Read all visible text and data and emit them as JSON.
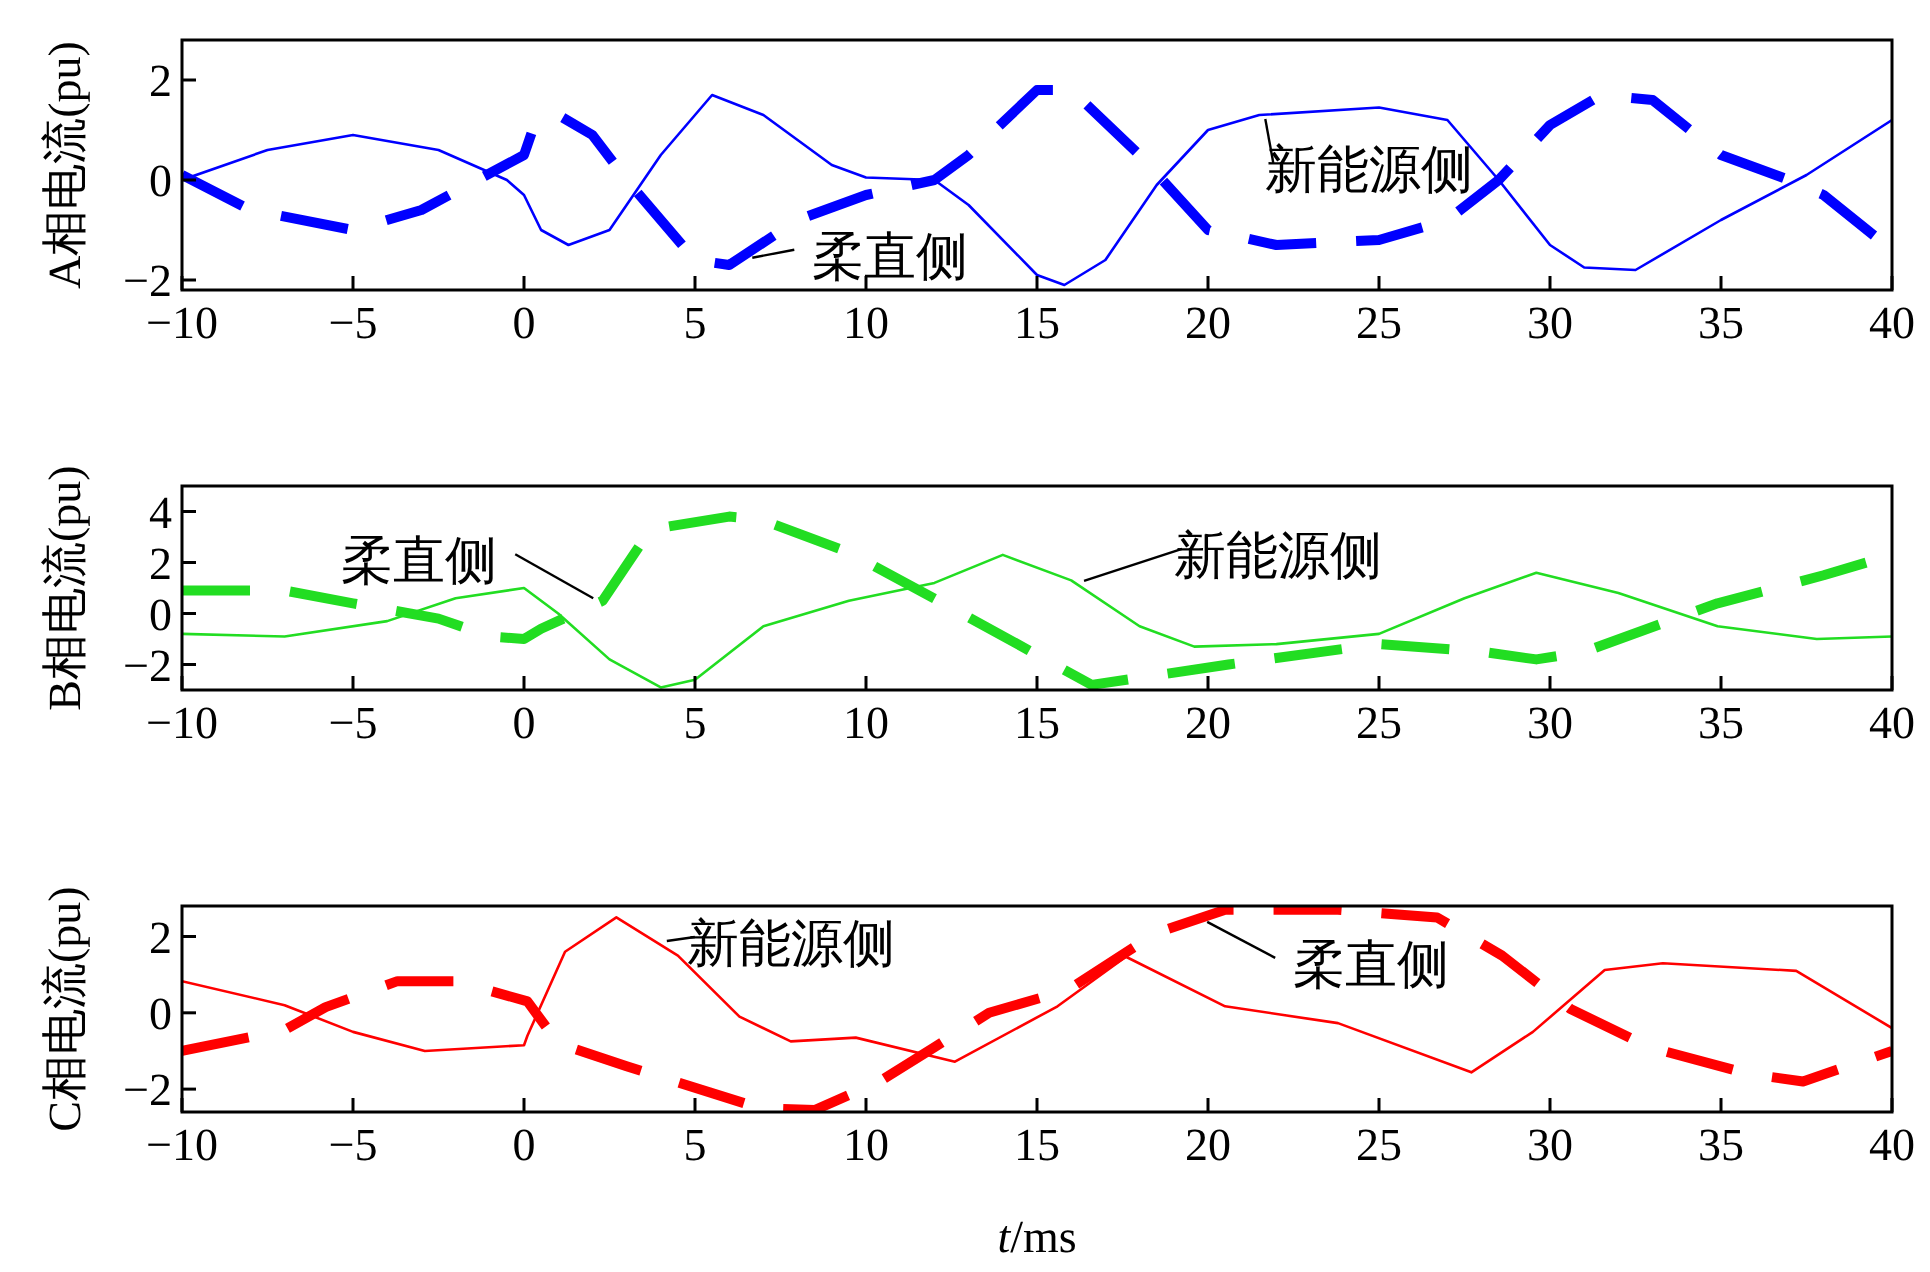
{
  "chart_data": [
    {
      "type": "line",
      "ylabel": "A相电流(pu)",
      "xlim": [
        -10,
        40
      ],
      "xticks": [
        -10,
        -5,
        0,
        5,
        10,
        15,
        20,
        25,
        30,
        35,
        40
      ],
      "ylim": [
        -2.2,
        2.8
      ],
      "yticks": [
        -2,
        0,
        2
      ],
      "series": [
        {
          "name": "新能源侧",
          "color": "#0000ff",
          "line_style": "solid",
          "x": [
            -10,
            -7.5,
            -5,
            -2.5,
            -0.5,
            0,
            0.5,
            1.3,
            2.5,
            4,
            5.5,
            7,
            9,
            10,
            12,
            13,
            15,
            15.8,
            17,
            18.5,
            20,
            21.5,
            25,
            27,
            28.5,
            30,
            31,
            32.5,
            35,
            37.5,
            40
          ],
          "values": [
            0.0,
            0.6,
            0.9,
            0.6,
            0.0,
            -0.3,
            -1.0,
            -1.3,
            -1.0,
            0.5,
            1.7,
            1.3,
            0.3,
            0.05,
            0.0,
            -0.5,
            -1.9,
            -2.1,
            -1.6,
            -0.1,
            1.0,
            1.3,
            1.45,
            1.2,
            0.0,
            -1.3,
            -1.75,
            -1.8,
            -0.8,
            0.1,
            1.2
          ]
        },
        {
          "name": "柔直侧",
          "color": "#0000ff",
          "line_style": "dashed",
          "x": [
            -10,
            -8,
            -5,
            -3,
            0,
            0.3,
            1,
            2,
            3,
            5,
            6,
            8,
            10,
            12,
            13,
            15,
            16,
            18,
            20,
            22,
            25,
            27,
            28.5,
            30,
            31.5,
            33,
            35,
            37,
            38,
            40
          ],
          "values": [
            0.1,
            -0.6,
            -1.0,
            -0.6,
            0.5,
            1.1,
            1.3,
            0.9,
            0.0,
            -1.6,
            -1.7,
            -0.8,
            -0.3,
            0.0,
            0.5,
            1.8,
            1.8,
            0.5,
            -1.0,
            -1.3,
            -1.2,
            -0.8,
            0.0,
            1.1,
            1.7,
            1.6,
            0.5,
            0.0,
            -0.3,
            -1.4
          ]
        }
      ]
    },
    {
      "type": "line",
      "ylabel": "B相电流(pu)",
      "xlim": [
        -10,
        40
      ],
      "xticks": [
        -10,
        -5,
        0,
        5,
        10,
        15,
        20,
        25,
        30,
        35,
        40
      ],
      "ylim": [
        -3,
        5
      ],
      "yticks": [
        -2,
        0,
        2,
        4
      ],
      "series": [
        {
          "name": "新能源侧",
          "color": "#22dd22",
          "line_style": "solid",
          "x": [
            -10,
            -7,
            -4,
            -2,
            0,
            1,
            2.5,
            4,
            5,
            7,
            9.5,
            12,
            14,
            16,
            18,
            19.6,
            22,
            25,
            27.5,
            29.6,
            32,
            34.9,
            37.8,
            40
          ],
          "values": [
            -0.8,
            -0.9,
            -0.3,
            0.6,
            1.0,
            0.0,
            -1.8,
            -2.9,
            -2.6,
            -0.5,
            0.5,
            1.2,
            2.3,
            1.3,
            -0.5,
            -1.3,
            -1.2,
            -0.8,
            0.6,
            1.6,
            0.8,
            -0.5,
            -1.0,
            -0.9
          ]
        },
        {
          "name": "柔直侧",
          "color": "#22dd22",
          "line_style": "dashed",
          "x": [
            -10,
            -7,
            -5,
            -2.5,
            -1,
            0,
            0.5,
            2.3,
            3.7,
            6,
            6.9,
            9.5,
            12.8,
            16.6,
            20.6,
            25,
            28,
            29.6,
            31,
            34.9,
            38,
            40
          ],
          "values": [
            0.9,
            0.9,
            0.4,
            -0.2,
            -0.9,
            -1.0,
            -0.6,
            0.5,
            3.3,
            3.8,
            3.7,
            2.4,
            0.0,
            -2.8,
            -2.0,
            -1.2,
            -1.5,
            -1.8,
            -1.5,
            0.4,
            1.5,
            2.3
          ]
        }
      ]
    },
    {
      "type": "line",
      "ylabel": "C相电流(pu)",
      "xlabel": "t/ms",
      "xlim": [
        -10,
        40
      ],
      "xticks": [
        -10,
        -5,
        0,
        5,
        10,
        15,
        20,
        25,
        30,
        35,
        40
      ],
      "ylim": [
        -2.6,
        2.8
      ],
      "yticks": [
        -2,
        0,
        2
      ],
      "series": [
        {
          "name": "新能源侧",
          "color": "#ff0000",
          "line_style": "solid",
          "x": [
            -10,
            -7,
            -5,
            -2.9,
            0,
            0.1,
            1.2,
            2.7,
            4.5,
            6.3,
            7.8,
            9.7,
            12.6,
            15.6,
            17.6,
            20.5,
            23.8,
            27.7,
            29.5,
            31.6,
            33.3,
            37.2,
            40
          ],
          "values": [
            0.83,
            0.2,
            -0.5,
            -1.0,
            -0.85,
            -0.6,
            1.6,
            2.5,
            1.5,
            -0.1,
            -0.75,
            -0.65,
            -1.28,
            0.17,
            1.47,
            0.17,
            -0.27,
            -1.56,
            -0.5,
            1.12,
            1.3,
            1.1,
            -0.4
          ]
        },
        {
          "name": "柔直侧",
          "color": "#ff0000",
          "line_style": "dashed",
          "x": [
            -10,
            -7,
            -5.8,
            -3.7,
            -2,
            0.1,
            1.0,
            3,
            6.9,
            8.5,
            10.4,
            12,
            13.6,
            15.9,
            18.5,
            20.5,
            23.8,
            26.7,
            28.6,
            30.6,
            32.9,
            35.8,
            37.4,
            40
          ],
          "values": [
            -1.0,
            -0.45,
            0.15,
            0.83,
            0.83,
            0.3,
            -0.8,
            -1.4,
            -2.5,
            -2.55,
            -1.8,
            -0.9,
            0.0,
            0.6,
            2.1,
            2.7,
            2.7,
            2.5,
            1.5,
            0.1,
            -0.9,
            -1.6,
            -1.8,
            -1.0
          ]
        }
      ]
    }
  ]
}
